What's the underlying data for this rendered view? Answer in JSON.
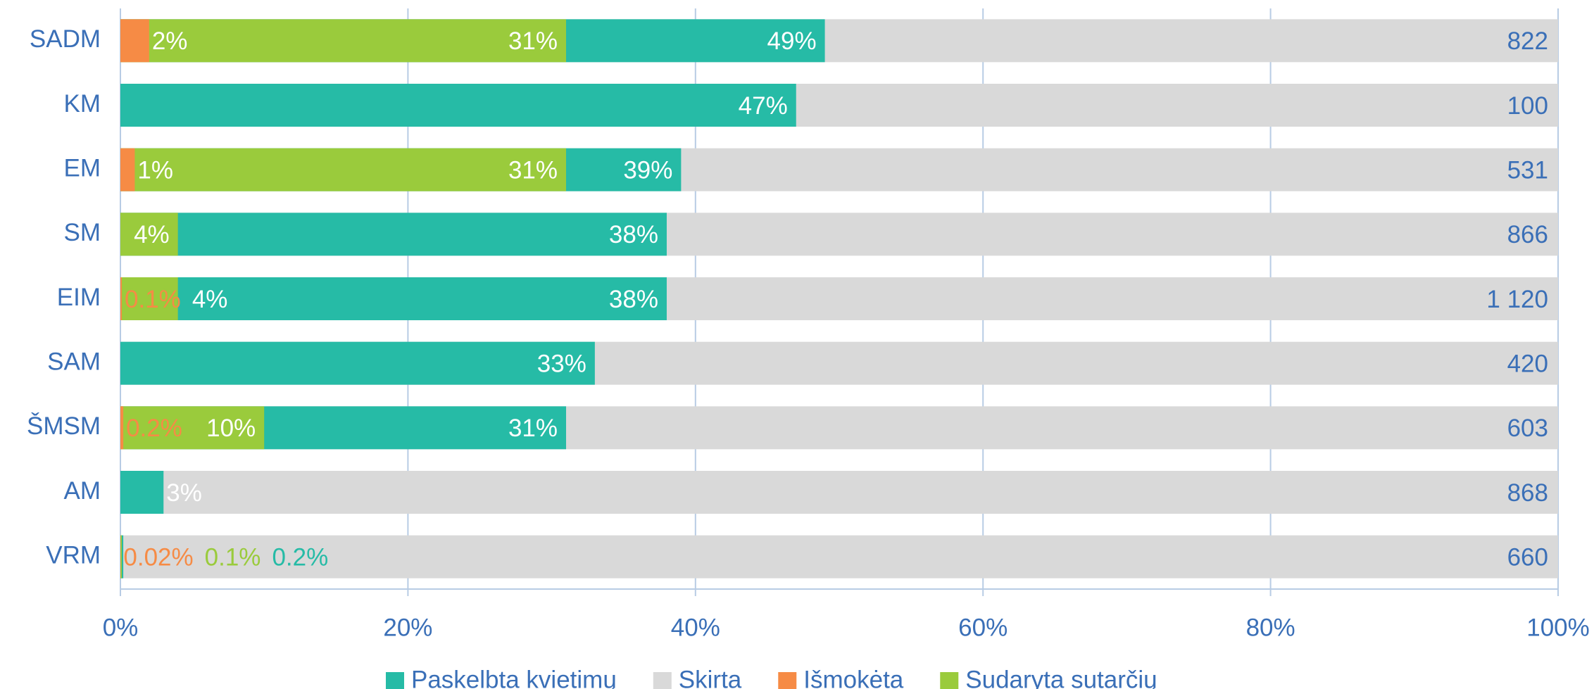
{
  "chart_data": {
    "type": "hbar_overlap",
    "categories": [
      "SADM",
      "KM",
      "EM",
      "SM",
      "EIM",
      "SAM",
      "ŠMSM",
      "AM",
      "VRM"
    ],
    "series": [
      {
        "name": "Paskelbta kvietimų",
        "color": "#26bba6",
        "values": [
          49,
          47,
          39,
          38,
          38,
          33,
          31,
          3,
          0.2
        ],
        "value_labels": [
          "49%",
          "47%",
          "39%",
          "38%",
          "38%",
          "33%",
          "31%",
          "3%",
          "0.2%"
        ]
      },
      {
        "name": "Skirta",
        "color": "#d9d9d9",
        "values": [
          100,
          100,
          100,
          100,
          100,
          100,
          100,
          100,
          100
        ]
      },
      {
        "name": "Išmokėta",
        "color": "#f68b45",
        "values": [
          2,
          null,
          1,
          null,
          0.1,
          null,
          0.2,
          null,
          0.02
        ],
        "value_labels": [
          "2%",
          null,
          "1%",
          null,
          "0.1%",
          null,
          "0.2%",
          null,
          "0.02%"
        ]
      },
      {
        "name": "Sudaryta sutarčių",
        "color": "#9acb3c",
        "values": [
          31,
          null,
          31,
          4,
          4,
          null,
          10,
          null,
          0.1
        ],
        "value_labels": [
          "31%",
          null,
          "31%",
          "4%",
          "4%",
          null,
          "10%",
          null,
          "0.1%"
        ]
      }
    ],
    "totals": [
      "822",
      "100",
      "531",
      "866",
      "1 120",
      "420",
      "603",
      "868",
      "660"
    ],
    "xlim": [
      0,
      100
    ],
    "xticks": [
      {
        "value": 0,
        "label": "0%"
      },
      {
        "value": 20,
        "label": "20%"
      },
      {
        "value": 40,
        "label": "40%"
      },
      {
        "value": 60,
        "label": "60%"
      },
      {
        "value": 80,
        "label": "80%"
      },
      {
        "value": 100,
        "label": "100%"
      }
    ],
    "grid": true,
    "legend": "bottom"
  }
}
